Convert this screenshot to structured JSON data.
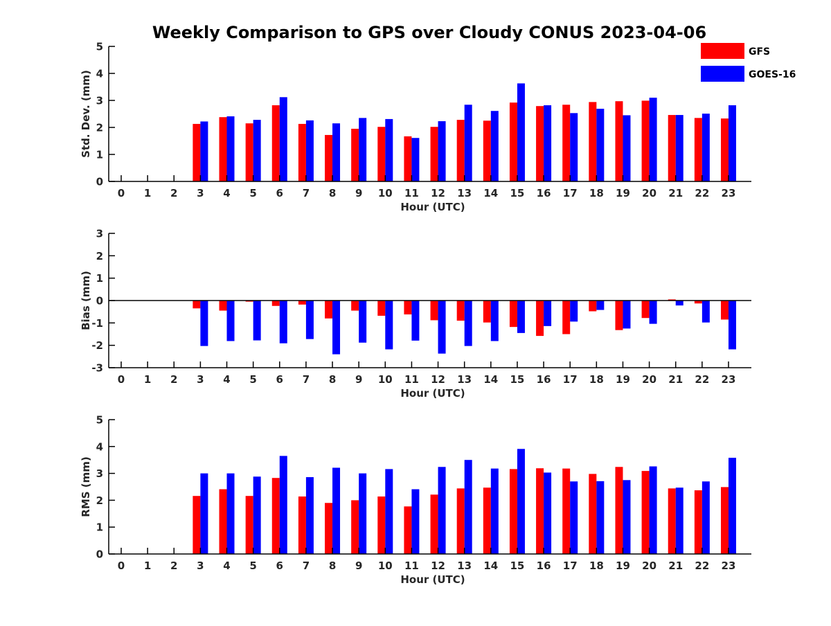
{
  "title": "Weekly Comparison to GPS over Cloudy CONUS 2023-04-06",
  "legend": {
    "placement": "top-right",
    "items": [
      {
        "name": "GFS",
        "color": "#ff0000"
      },
      {
        "name": "GOES-16",
        "color": "#0000ff"
      }
    ]
  },
  "chart_data": [
    {
      "type": "bar",
      "xlabel": "Hour (UTC)",
      "ylabel": "Std. Dev. (mm)",
      "ylim": [
        0,
        5
      ],
      "yticks": [
        0,
        1,
        2,
        3,
        4,
        5
      ],
      "categories": [
        "0",
        "1",
        "2",
        "3",
        "4",
        "5",
        "6",
        "7",
        "8",
        "9",
        "10",
        "11",
        "12",
        "13",
        "14",
        "15",
        "16",
        "17",
        "18",
        "19",
        "20",
        "21",
        "22",
        "23"
      ],
      "series": [
        {
          "name": "GFS",
          "color": "#ff0000",
          "values": [
            null,
            null,
            null,
            2.13,
            2.38,
            2.15,
            2.82,
            2.13,
            1.72,
            1.95,
            2.02,
            1.67,
            2.02,
            2.28,
            2.25,
            2.92,
            2.79,
            2.84,
            2.94,
            2.97,
            2.99,
            2.46,
            2.35,
            2.33
          ]
        },
        {
          "name": "GOES-16",
          "color": "#0000ff",
          "values": [
            null,
            null,
            null,
            2.22,
            2.41,
            2.28,
            3.12,
            2.26,
            2.15,
            2.35,
            2.31,
            1.61,
            2.23,
            2.84,
            2.61,
            3.63,
            2.82,
            2.53,
            2.69,
            2.45,
            3.1,
            2.46,
            2.51,
            2.82
          ]
        }
      ]
    },
    {
      "type": "bar",
      "xlabel": "Hour (UTC)",
      "ylabel": "Bias (mm)",
      "ylim": [
        -3,
        3
      ],
      "yticks": [
        -3,
        -2,
        -1,
        0,
        1,
        2,
        3
      ],
      "zero_line": true,
      "categories": [
        "0",
        "1",
        "2",
        "3",
        "4",
        "5",
        "6",
        "7",
        "8",
        "9",
        "10",
        "11",
        "12",
        "13",
        "14",
        "15",
        "16",
        "17",
        "18",
        "19",
        "20",
        "21",
        "22",
        "23"
      ],
      "series": [
        {
          "name": "GFS",
          "color": "#ff0000",
          "values": [
            null,
            null,
            null,
            -0.35,
            -0.45,
            -0.05,
            -0.24,
            -0.18,
            -0.8,
            -0.45,
            -0.68,
            -0.62,
            -0.88,
            -0.9,
            -0.98,
            -1.18,
            -1.58,
            -1.5,
            -0.48,
            -1.32,
            -0.78,
            0.05,
            -0.13,
            -0.85
          ]
        },
        {
          "name": "GOES-16",
          "color": "#0000ff",
          "values": [
            null,
            null,
            null,
            -2.03,
            -1.81,
            -1.78,
            -1.91,
            -1.72,
            -2.4,
            -1.88,
            -2.18,
            -1.79,
            -2.37,
            -2.03,
            -1.81,
            -1.45,
            -1.14,
            -0.94,
            -0.42,
            -1.25,
            -1.04,
            -0.22,
            -0.98,
            -2.18
          ]
        }
      ]
    },
    {
      "type": "bar",
      "xlabel": "Hour (UTC)",
      "ylabel": "RMS (mm)",
      "ylim": [
        0,
        5
      ],
      "yticks": [
        0,
        1,
        2,
        3,
        4,
        5
      ],
      "categories": [
        "0",
        "1",
        "2",
        "3",
        "4",
        "5",
        "6",
        "7",
        "8",
        "9",
        "10",
        "11",
        "12",
        "13",
        "14",
        "15",
        "16",
        "17",
        "18",
        "19",
        "20",
        "21",
        "22",
        "23"
      ],
      "series": [
        {
          "name": "GFS",
          "color": "#ff0000",
          "values": [
            null,
            null,
            null,
            2.16,
            2.41,
            2.16,
            2.83,
            2.14,
            1.9,
            2.0,
            2.14,
            1.77,
            2.21,
            2.44,
            2.47,
            3.16,
            3.19,
            3.18,
            2.98,
            3.24,
            3.09,
            2.44,
            2.37,
            2.49
          ]
        },
        {
          "name": "GOES-16",
          "color": "#0000ff",
          "values": [
            null,
            null,
            null,
            3.0,
            3.0,
            2.88,
            3.65,
            2.86,
            3.21,
            3.0,
            3.16,
            2.41,
            3.24,
            3.5,
            3.18,
            3.91,
            3.03,
            2.7,
            2.71,
            2.75,
            3.26,
            2.47,
            2.7,
            3.58
          ]
        }
      ]
    }
  ]
}
